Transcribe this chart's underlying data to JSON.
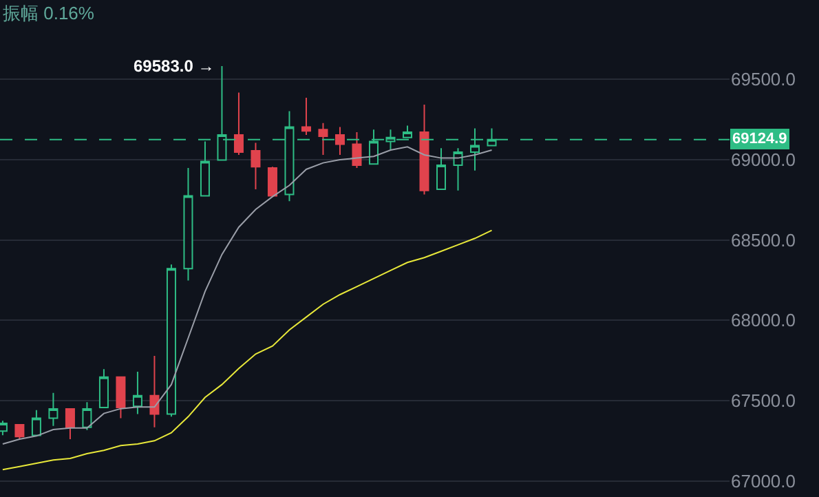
{
  "chart_data": {
    "type": "candlestick",
    "annotations": [
      "振幅 0.16%",
      "69583.0 →"
    ],
    "categories": [
      null,
      null,
      null,
      null,
      null,
      null,
      null,
      null,
      null,
      null,
      null,
      null,
      null,
      null,
      null,
      null,
      null,
      null,
      null,
      null,
      null,
      null,
      null,
      null,
      null,
      null,
      null,
      null,
      null,
      null
    ],
    "ohlc": [
      [
        67310,
        67375,
        67285,
        67358
      ],
      [
        67350,
        67350,
        67260,
        67276
      ],
      [
        67284,
        67441,
        67284,
        67391
      ],
      [
        67391,
        67548,
        67342,
        67449
      ],
      [
        67449,
        67449,
        67260,
        67334
      ],
      [
        67334,
        67490,
        67317,
        67449
      ],
      [
        67457,
        67696,
        67457,
        67647
      ],
      [
        67647,
        67647,
        67391,
        67457
      ],
      [
        67465,
        67680,
        67416,
        67531
      ],
      [
        67531,
        67778,
        67334,
        67416
      ],
      [
        67416,
        68347,
        67400,
        68322
      ],
      [
        68322,
        68948,
        68248,
        68775
      ],
      [
        68775,
        69113,
        68775,
        68989
      ],
      [
        68998,
        69583,
        68998,
        69154
      ],
      [
        69154,
        69418,
        69030,
        69047
      ],
      [
        69055,
        69105,
        68816,
        68956
      ],
      [
        68948,
        68956,
        68767,
        68775
      ],
      [
        68783,
        69302,
        68742,
        69203
      ],
      [
        69203,
        69385,
        69154,
        69179
      ],
      [
        69187,
        69228,
        69030,
        69146
      ],
      [
        69154,
        69203,
        69030,
        69096
      ],
      [
        69096,
        69171,
        68948,
        68965
      ],
      [
        68973,
        69187,
        68973,
        69113
      ],
      [
        69113,
        69187,
        69063,
        69138
      ],
      [
        69138,
        69212,
        69138,
        69171
      ],
      [
        69171,
        69343,
        68783,
        68808
      ],
      [
        68816,
        69072,
        68816,
        68965
      ],
      [
        68965,
        69072,
        68808,
        69047
      ],
      [
        69047,
        69195,
        68932,
        69088
      ],
      [
        69088,
        69195,
        69088,
        69124.9
      ]
    ],
    "colors": [
      "#2ebd85",
      "#e0434d",
      "#2ebd85",
      "#2ebd85",
      "#e0434d",
      "#2ebd85",
      "#2ebd85",
      "#e0434d",
      "#2ebd85",
      "#e0434d",
      "#2ebd85",
      "#2ebd85",
      "#2ebd85",
      "#2ebd85",
      "#e0434d",
      "#e0434d",
      "#e0434d",
      "#2ebd85",
      "#e0434d",
      "#e0434d",
      "#e0434d",
      "#e0434d",
      "#2ebd85",
      "#2ebd85",
      "#2ebd85",
      "#e0434d",
      "#2ebd85",
      "#2ebd85",
      "#2ebd85",
      "#2ebd85"
    ],
    "series": [
      {
        "type": "line",
        "color": "#9a9ea8",
        "values": [
          67230,
          67260,
          67280,
          67320,
          67330,
          67330,
          67420,
          67450,
          67460,
          67460,
          67600,
          67890,
          68180,
          68410,
          68580,
          68690,
          68770,
          68840,
          68940,
          68980,
          69000,
          69010,
          69020,
          69060,
          69080,
          69030,
          69010,
          69010,
          69030,
          69060
        ]
      },
      {
        "type": "line",
        "color": "#e8e83a",
        "values": [
          67070,
          67090,
          67110,
          67130,
          67140,
          67170,
          67190,
          67220,
          67230,
          67250,
          67300,
          67400,
          67520,
          67600,
          67700,
          67790,
          67840,
          67940,
          68020,
          68100,
          68160,
          68210,
          68260,
          68310,
          68360,
          68390,
          68430,
          68470,
          68510,
          68560
        ]
      }
    ],
    "ref_lines": [
      {
        "axis": "y",
        "value": 69124.9,
        "label": "69124.9",
        "color": "#2ebd85",
        "line_style": "dashed"
      }
    ],
    "ylim": [
      66900,
      69994
    ],
    "yticks": [
      {
        "value": 67000,
        "label": "67000.0"
      },
      {
        "value": 67500,
        "label": "67500.0"
      },
      {
        "value": 68000,
        "label": "68000.0"
      },
      {
        "value": 68500,
        "label": "68500.0"
      },
      {
        "value": 69000,
        "label": "69000.0"
      },
      {
        "value": 69500,
        "label": "69500.0"
      }
    ],
    "grid": "y",
    "tick_labels": "y"
  }
}
